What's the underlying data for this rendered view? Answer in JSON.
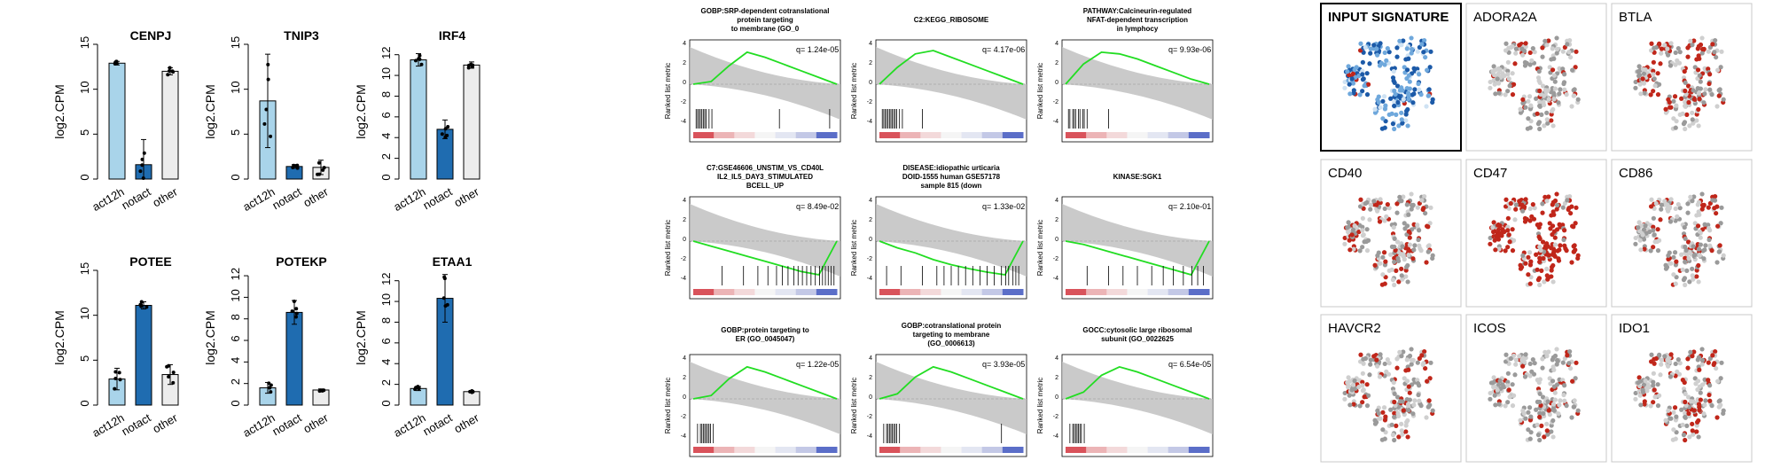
{
  "colors": {
    "act12h": "#a9d4ea",
    "notact": "#1f6cb0",
    "other": "#ececec",
    "gsea_line": "#22dd22",
    "gsea_fill": "#bdbdbd",
    "tsne_grey": "#cfcfcf",
    "tsne_red": "#c0261a",
    "tsne_blue": "#1c5aa8"
  },
  "chart_data": [
    {
      "type": "bar",
      "panel": "bar-panels",
      "ylabel": "log2.CPM",
      "categories": [
        "act12h",
        "notact",
        "other"
      ],
      "genes": [
        {
          "title": "CENPJ",
          "ylim": [
            0,
            15
          ],
          "yticks": [
            0,
            5,
            10,
            15
          ],
          "values": [
            12.9,
            1.6,
            12.0
          ],
          "err": [
            0.2,
            2.8,
            0.4
          ]
        },
        {
          "title": "TNIP3",
          "ylim": [
            0,
            15
          ],
          "yticks": [
            0,
            5,
            10,
            15
          ],
          "values": [
            8.7,
            1.4,
            1.3
          ],
          "err": [
            5.2,
            0.2,
            0.8
          ]
        },
        {
          "title": "IRF4",
          "ylim": [
            0,
            13
          ],
          "yticks": [
            0,
            2,
            4,
            6,
            8,
            10,
            12
          ],
          "values": [
            11.5,
            4.8,
            11.0
          ],
          "err": [
            0.6,
            0.9,
            0.3
          ]
        },
        {
          "title": "POTEE",
          "ylim": [
            0,
            15
          ],
          "yticks": [
            0,
            5,
            10,
            15
          ],
          "values": [
            2.9,
            11.1,
            3.4
          ],
          "err": [
            1.2,
            0.4,
            1.1
          ]
        },
        {
          "title": "POTEKP",
          "ylim": [
            0,
            12.5
          ],
          "yticks": [
            0,
            2,
            4,
            6,
            8,
            10,
            12
          ],
          "values": [
            1.6,
            8.6,
            1.4
          ],
          "err": [
            0.5,
            1.1,
            0.1
          ]
        },
        {
          "title": "ETAA1",
          "ylim": [
            0,
            13
          ],
          "yticks": [
            0,
            2,
            4,
            6,
            8,
            10,
            12
          ],
          "values": [
            1.6,
            10.3,
            1.3
          ],
          "err": [
            0.2,
            2.3,
            0.1
          ]
        }
      ]
    },
    {
      "type": "line",
      "panel": "gsea-panels",
      "ylabel": "Ranked list metric",
      "yticks": [
        4,
        2,
        0,
        -2,
        -4
      ],
      "panels": [
        {
          "title_lines": [
            "GOBP:SRP-dependent cotranslational",
            "protein targeting",
            "to membrane (GO_0"
          ],
          "q": "q= 1.24e-05",
          "es_curve": [
            0,
            0.08,
            0.55,
            0.95,
            0.8,
            0.6,
            0.4,
            0.2,
            0
          ],
          "hits": [
            0.02,
            0.03,
            0.04,
            0.05,
            0.06,
            0.07,
            0.08,
            0.09,
            0.11,
            0.13,
            0.6,
            0.95
          ]
        },
        {
          "title_lines": [
            "C2:KEGG_RIBOSOME"
          ],
          "q": "q= 4.17e-06",
          "es_curve": [
            0,
            0.5,
            0.9,
            1.0,
            0.8,
            0.6,
            0.4,
            0.2,
            0
          ],
          "hits": [
            0.02,
            0.03,
            0.04,
            0.05,
            0.06,
            0.07,
            0.08,
            0.09,
            0.1,
            0.11,
            0.12,
            0.14,
            0.16,
            0.3
          ]
        },
        {
          "title_lines": [
            "PATHWAY:Calcineurin-regulated",
            "NFAT-dependent transcription",
            "in lymphocy"
          ],
          "q": "q= 9.93e-06",
          "es_curve": [
            0,
            0.6,
            0.95,
            0.9,
            0.75,
            0.55,
            0.35,
            0.15,
            0
          ],
          "hits": [
            0.02,
            0.03,
            0.05,
            0.06,
            0.07,
            0.09,
            0.1,
            0.12,
            0.13,
            0.15,
            0.3
          ]
        },
        {
          "title_lines": [
            "C7:GSE46606_UNSTIM_VS_CD40L",
            "IL2_IL5_DAY3_STIMULATED",
            "BCELL_UP"
          ],
          "q": "q= 8.49e-02",
          "es_curve": [
            0,
            -0.15,
            -0.3,
            -0.45,
            -0.6,
            -0.75,
            -0.9,
            -1.0,
            0
          ],
          "hits": [
            0.2,
            0.35,
            0.45,
            0.52,
            0.58,
            0.62,
            0.66,
            0.7,
            0.73,
            0.76,
            0.79,
            0.82,
            0.85,
            0.88,
            0.9,
            0.92,
            0.94,
            0.96,
            0.98
          ]
        },
        {
          "title_lines": [
            "DISEASE:idiopathic urticaria",
            "DOID-1555 human GSE57178",
            "sample 815 (down"
          ],
          "q": "q= 1.33e-02",
          "es_curve": [
            0,
            -0.2,
            -0.35,
            -0.55,
            -0.7,
            -0.82,
            -0.92,
            -1.0,
            0
          ],
          "hits": [
            0.05,
            0.15,
            0.3,
            0.4,
            0.45,
            0.5,
            0.55,
            0.6,
            0.65,
            0.7,
            0.75,
            0.8,
            0.85,
            0.88,
            0.9,
            0.93,
            0.95,
            0.97
          ]
        },
        {
          "title_lines": [
            "KINASE:SGK1"
          ],
          "q": "q= 2.10e-01",
          "es_curve": [
            0,
            -0.1,
            -0.25,
            -0.4,
            -0.55,
            -0.7,
            -0.85,
            -1.0,
            0
          ],
          "hits": [
            0.15,
            0.3,
            0.4,
            0.5,
            0.6,
            0.68,
            0.75,
            0.82,
            0.88,
            0.92,
            0.96
          ]
        },
        {
          "title_lines": [
            "GOBP:protein targeting to",
            "ER (GO_0045047)"
          ],
          "q": "q= 1.22e-05",
          "es_curve": [
            0,
            0.1,
            0.6,
            0.95,
            0.8,
            0.6,
            0.4,
            0.2,
            0
          ],
          "hits": [
            0.03,
            0.05,
            0.06,
            0.07,
            0.08,
            0.09,
            0.1,
            0.11,
            0.12,
            0.14
          ]
        },
        {
          "title_lines": [
            "GOBP:cotranslational protein",
            "targeting to membrane",
            "(GO_0006613)"
          ],
          "q": "q= 3.93e-05",
          "es_curve": [
            0,
            0.15,
            0.65,
            0.95,
            0.8,
            0.6,
            0.4,
            0.2,
            0
          ],
          "hits": [
            0.03,
            0.05,
            0.06,
            0.07,
            0.08,
            0.09,
            0.1,
            0.11,
            0.12,
            0.14,
            0.85
          ]
        },
        {
          "title_lines": [
            "GOCC:cytosolic large ribosomal",
            "subunit (GO_0022625"
          ],
          "q": "q= 6.54e-05",
          "es_curve": [
            0,
            0.2,
            0.7,
            0.95,
            0.8,
            0.6,
            0.4,
            0.2,
            0
          ],
          "hits": [
            0.03,
            0.05,
            0.06,
            0.07,
            0.08,
            0.09,
            0.1,
            0.11,
            0.13
          ]
        }
      ]
    },
    {
      "type": "scatter",
      "panel": "tsne-panels",
      "panels": [
        {
          "label": "INPUT SIGNATURE",
          "highlight": "blue"
        },
        {
          "label": "ADORA2A",
          "red_fraction": 0.25
        },
        {
          "label": "BTLA",
          "red_fraction": 0.35
        },
        {
          "label": "CD40",
          "red_fraction": 0.3
        },
        {
          "label": "CD47",
          "red_fraction": 0.75
        },
        {
          "label": "CD86",
          "red_fraction": 0.25
        },
        {
          "label": "HAVCR2",
          "red_fraction": 0.2
        },
        {
          "label": "ICOS",
          "red_fraction": 0.15
        },
        {
          "label": "IDO1",
          "red_fraction": 0.3
        }
      ]
    }
  ]
}
